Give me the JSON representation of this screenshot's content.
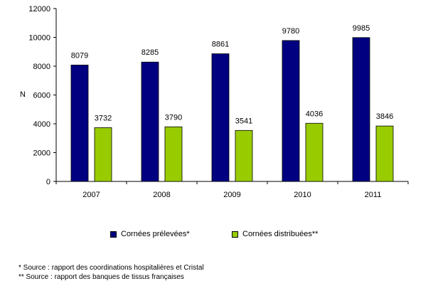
{
  "chart_data": {
    "type": "bar",
    "categories": [
      "2007",
      "2008",
      "2009",
      "2010",
      "2011"
    ],
    "series": [
      {
        "name": "Cornées prélevées*",
        "values": [
          8079,
          8285,
          8861,
          9780,
          9985
        ],
        "color": "#000080"
      },
      {
        "name": "Cornées distribuées**",
        "values": [
          3732,
          3790,
          3541,
          4036,
          3846
        ],
        "color": "#99CC00"
      }
    ],
    "ylabel": "N",
    "xlabel": "",
    "title": "",
    "ylim": [
      0,
      12000
    ],
    "yticks": [
      0,
      2000,
      4000,
      6000,
      8000,
      10000,
      12000
    ],
    "grid": false,
    "legend_position": "bottom"
  },
  "footnotes": [
    "* Source : rapport des coordinations hospitalières et Cristal",
    "** Source : rapport des banques de tissus françaises"
  ]
}
